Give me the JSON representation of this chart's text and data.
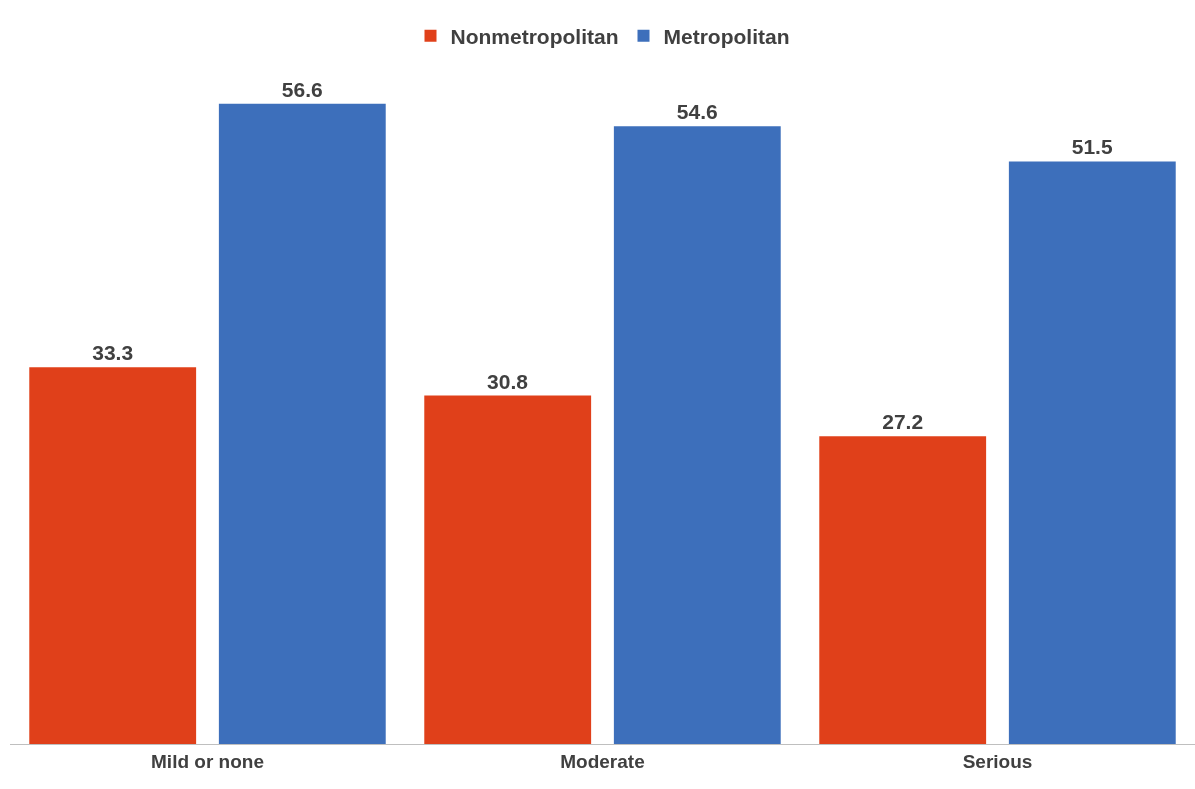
{
  "chart_data": {
    "type": "bar",
    "categories": [
      "Mild or none",
      "Moderate",
      "Serious"
    ],
    "series": [
      {
        "name": "Nonmetropolitan",
        "color": "#e0401a",
        "values": [
          33.3,
          30.8,
          27.2
        ]
      },
      {
        "name": "Metropolitan",
        "color": "#3d6fbb",
        "values": [
          56.6,
          54.6,
          51.5
        ]
      }
    ],
    "data_labels": true,
    "legend": "top",
    "tick_labels": "x"
  }
}
